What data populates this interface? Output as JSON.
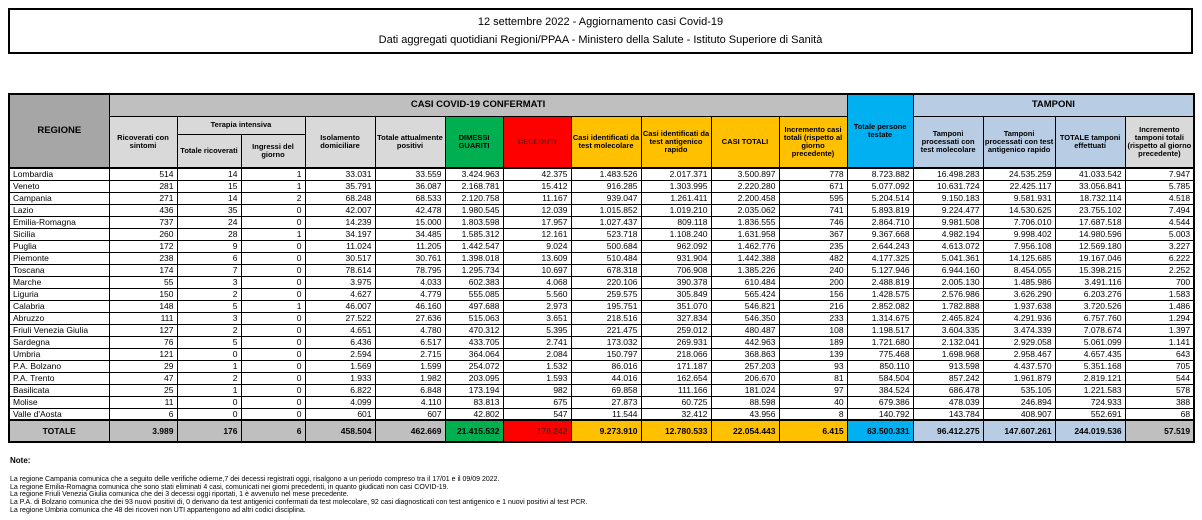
{
  "title": {
    "line1": "12 settembre 2022 - Aggiornamento casi Covid-19",
    "line2": "Dati aggregati quotidiani Regioni/PPAA - Ministero della Salute - Istituto Superiore di Sanità"
  },
  "colors": {
    "green": "#00B050",
    "red": "#FF0000",
    "amber": "#FFC000",
    "cyan": "#00B0F0",
    "lavender": "#B8CCE4",
    "grey_band": "#BFBFBF",
    "grey_light": "#D9D9D9",
    "grey_region": "#A6A6A6",
    "deceduti_text": "#6D1A11"
  },
  "table": {
    "header": {
      "regione": "REGIONE",
      "confermati_band": "CASI COVID-19 CONFERMATI",
      "ricoverati": "Ricoverati con sintomi",
      "terapia_band": "Terapia intensiva",
      "terapia_totale": "Totale ricoverati",
      "terapia_ingressi": "Ingressi del giorno",
      "isolamento": "Isolamento domiciliare",
      "positivi": "Totale attualmente positivi",
      "dimessi": "DIMESSI GUARITI",
      "deceduti": "DECEDUTI",
      "casi_molecolare": "Casi identificati da test molecolare",
      "casi_antigenico": "Casi identificati da test antigenico rapido",
      "casi_totali": "CASI TOTALI",
      "incremento_casi": "Incremento casi totali (rispetto al giorno precedente)",
      "persone_testate": "Totale persone testate",
      "tamponi_band": "TAMPONI",
      "tamponi_molecolare": "Tamponi processati con test molecolare",
      "tamponi_antigenico": "Tamponi processati con test antigenico rapido",
      "tamponi_totale": "TOTALE tamponi effettuati",
      "incremento_tamponi": "Incremento tamponi totali (rispetto al giorno precedente)"
    },
    "regions": [
      {
        "name": "Lombardia",
        "values": [
          "514",
          "14",
          "1",
          "33.031",
          "33.559",
          "3.424.963",
          "42.375",
          "1.483.526",
          "2.017.371",
          "3.500.897",
          "778",
          "8.723.882",
          "16.498.283",
          "24.535.259",
          "41.033.542",
          "7.947"
        ]
      },
      {
        "name": "Veneto",
        "values": [
          "281",
          "15",
          "1",
          "35.791",
          "36.087",
          "2.168.781",
          "15.412",
          "916.285",
          "1.303.995",
          "2.220.280",
          "671",
          "5.077.092",
          "10.631.724",
          "22.425.117",
          "33.056.841",
          "5.785"
        ]
      },
      {
        "name": "Campania",
        "values": [
          "271",
          "14",
          "2",
          "68.248",
          "68.533",
          "2.120.758",
          "11.167",
          "939.047",
          "1.261.411",
          "2.200.458",
          "595",
          "5.204.514",
          "9.150.183",
          "9.581.931",
          "18.732.114",
          "4.518"
        ]
      },
      {
        "name": "Lazio",
        "values": [
          "436",
          "35",
          "0",
          "42.007",
          "42.478",
          "1.980.545",
          "12.039",
          "1.015.852",
          "1.019.210",
          "2.035.062",
          "741",
          "5.893.819",
          "9.224.477",
          "14.530.625",
          "23.755.102",
          "7.494"
        ]
      },
      {
        "name": "Emilia-Romagna",
        "values": [
          "737",
          "24",
          "0",
          "14.239",
          "15.000",
          "1.803.598",
          "17.957",
          "1.027.437",
          "809.118",
          "1.836.555",
          "746",
          "2.864.710",
          "9.981.508",
          "7.706.010",
          "17.687.518",
          "4.544"
        ]
      },
      {
        "name": "Sicilia",
        "values": [
          "260",
          "28",
          "1",
          "34.197",
          "34.485",
          "1.585.312",
          "12.161",
          "523.718",
          "1.108.240",
          "1.631.958",
          "367",
          "9.367.668",
          "4.982.194",
          "9.998.402",
          "14.980.596",
          "5.003"
        ]
      },
      {
        "name": "Puglia",
        "values": [
          "172",
          "9",
          "0",
          "11.024",
          "11.205",
          "1.442.547",
          "9.024",
          "500.684",
          "962.092",
          "1.462.776",
          "235",
          "2.644.243",
          "4.613.072",
          "7.956.108",
          "12.569.180",
          "3.227"
        ]
      },
      {
        "name": "Piemonte",
        "values": [
          "238",
          "6",
          "0",
          "30.517",
          "30.761",
          "1.398.018",
          "13.609",
          "510.484",
          "931.904",
          "1.442.388",
          "482",
          "4.177.325",
          "5.041.361",
          "14.125.685",
          "19.167.046",
          "6.222"
        ]
      },
      {
        "name": "Toscana",
        "values": [
          "174",
          "7",
          "0",
          "78.614",
          "78.795",
          "1.295.734",
          "10.697",
          "678.318",
          "706.908",
          "1.385.226",
          "240",
          "5.127.946",
          "6.944.160",
          "8.454.055",
          "15.398.215",
          "2.252"
        ]
      },
      {
        "name": "Marche",
        "values": [
          "55",
          "3",
          "0",
          "3.975",
          "4.033",
          "602.383",
          "4.068",
          "220.106",
          "390.378",
          "610.484",
          "200",
          "2.488.819",
          "2.005.130",
          "1.485.986",
          "3.491.116",
          "700"
        ]
      },
      {
        "name": "Liguria",
        "values": [
          "150",
          "2",
          "0",
          "4.627",
          "4.779",
          "555.085",
          "5.560",
          "259.575",
          "305.849",
          "565.424",
          "156",
          "1.428.575",
          "2.576.986",
          "3.626.290",
          "6.203.276",
          "1.583"
        ]
      },
      {
        "name": "Calabria",
        "values": [
          "148",
          "5",
          "1",
          "46.007",
          "46.160",
          "497.688",
          "2.973",
          "195.751",
          "351.070",
          "546.821",
          "216",
          "2.852.082",
          "1.782.888",
          "1.937.638",
          "3.720.526",
          "1.486"
        ]
      },
      {
        "name": "Abruzzo",
        "values": [
          "111",
          "3",
          "0",
          "27.522",
          "27.636",
          "515.063",
          "3.651",
          "218.516",
          "327.834",
          "546.350",
          "233",
          "1.314.675",
          "2.465.824",
          "4.291.936",
          "6.757.760",
          "1.294"
        ]
      },
      {
        "name": "Friuli Venezia Giulia",
        "values": [
          "127",
          "2",
          "0",
          "4.651",
          "4.780",
          "470.312",
          "5.395",
          "221.475",
          "259.012",
          "480.487",
          "108",
          "1.198.517",
          "3.604.335",
          "3.474.339",
          "7.078.674",
          "1.397"
        ]
      },
      {
        "name": "Sardegna",
        "values": [
          "76",
          "5",
          "0",
          "6.436",
          "6.517",
          "433.705",
          "2.741",
          "173.032",
          "269.931",
          "442.963",
          "189",
          "1.721.680",
          "2.132.041",
          "2.929.058",
          "5.061.099",
          "1.141"
        ]
      },
      {
        "name": "Umbria",
        "values": [
          "121",
          "0",
          "0",
          "2.594",
          "2.715",
          "364.064",
          "2.084",
          "150.797",
          "218.066",
          "368.863",
          "139",
          "775.468",
          "1.698.968",
          "2.958.467",
          "4.657.435",
          "643"
        ]
      },
      {
        "name": "P.A. Bolzano",
        "values": [
          "29",
          "1",
          "0",
          "1.569",
          "1.599",
          "254.072",
          "1.532",
          "86.016",
          "171.187",
          "257.203",
          "93",
          "850.110",
          "913.598",
          "4.437.570",
          "5.351.168",
          "705"
        ]
      },
      {
        "name": "P.A. Trento",
        "values": [
          "47",
          "2",
          "0",
          "1.933",
          "1.982",
          "203.095",
          "1.593",
          "44.016",
          "162.654",
          "206.670",
          "81",
          "584.504",
          "857.242",
          "1.961.879",
          "2.819.121",
          "544"
        ]
      },
      {
        "name": "Basilicata",
        "values": [
          "25",
          "1",
          "0",
          "6.822",
          "6.848",
          "173.194",
          "982",
          "69.858",
          "111.166",
          "181.024",
          "97",
          "384.524",
          "686.478",
          "535.105",
          "1.221.583",
          "578"
        ]
      },
      {
        "name": "Molise",
        "values": [
          "11",
          "0",
          "0",
          "4.099",
          "4.110",
          "83.813",
          "675",
          "27.873",
          "60.725",
          "88.598",
          "40",
          "679.386",
          "478.039",
          "246.894",
          "724.933",
          "388"
        ]
      },
      {
        "name": "Valle d'Aosta",
        "values": [
          "6",
          "0",
          "0",
          "601",
          "607",
          "42.802",
          "547",
          "11.544",
          "32.412",
          "43.956",
          "8",
          "140.792",
          "143.784",
          "408.907",
          "552.691",
          "68"
        ]
      }
    ],
    "total": {
      "label": "TOTALE",
      "values": [
        "3.989",
        "176",
        "6",
        "458.504",
        "462.669",
        "21.415.532",
        "176.242",
        "9.273.910",
        "12.780.533",
        "22.054.443",
        "6.415",
        "63.500.331",
        "96.412.275",
        "147.607.261",
        "244.019.536",
        "57.519"
      ]
    }
  },
  "notes": {
    "label": "Note:",
    "items": [
      "La regione Campania comunica che a seguito delle verifiche odierne,7 dei decessi registrati oggi, risalgono a un periodo compreso tra il 17/01 e il 09/09 2022.",
      "La regione Emilia-Romagna comunica che sono stati eliminati 4 casi, comunicati nei giorni precedenti, in quanto giudicati non casi COVID-19.",
      "La regione Friuli Venezia Giulia comunica che dei 3 decessi oggi riportati, 1 è avvenuto nel mese precedente.",
      "La P.A. di Bolzano comunica che dei 93 nuovi positivi di, 0 derivano da test antigenici confermati da test molecolare, 92 casi diagnosticati con test antigenico e 1 nuovi positivi al test PCR.",
      "La regione Umbria comunica che 48 dei ricoveri non UTI appartengono ad altri codici disciplina."
    ]
  }
}
